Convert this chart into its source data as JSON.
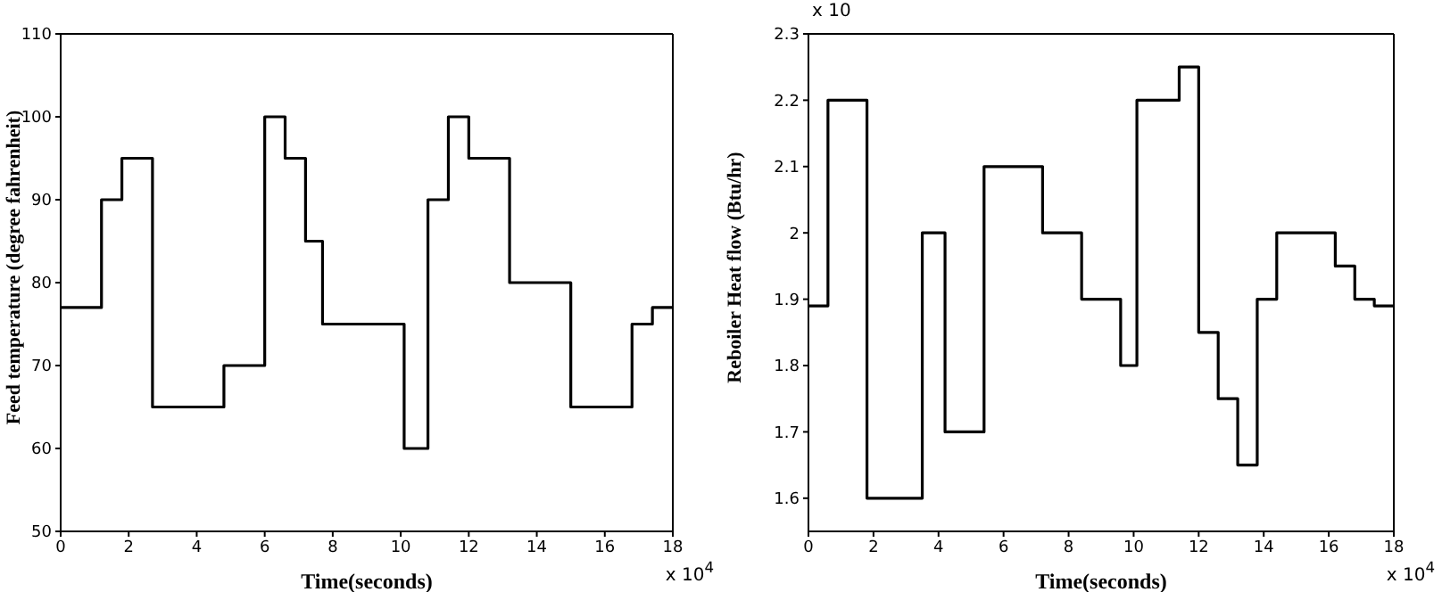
{
  "chart_data": [
    {
      "type": "step",
      "xlabel": "Time(seconds)",
      "ylabel": "Feed temperature (degree fahrenheit)",
      "annotations": [
        "x 10$^{4}$"
      ],
      "x": [
        0,
        1.2,
        1.8,
        2.7,
        4.8,
        6.0,
        6.6,
        7.2,
        7.7,
        10.1,
        10.8,
        11.4,
        12.0,
        13.2,
        15.0,
        16.8,
        17.4,
        18
      ],
      "values": [
        77,
        90,
        95,
        65,
        70,
        100,
        95,
        85,
        75,
        60,
        90,
        100,
        95,
        80,
        65,
        75,
        77,
        77
      ],
      "color": "#000000",
      "xlim": [
        0,
        18
      ],
      "xticks": [
        0,
        2,
        4,
        6,
        8,
        10,
        12,
        14,
        16,
        18
      ],
      "ylim": [
        50,
        110
      ],
      "yticks": [
        50,
        60,
        70,
        80,
        90,
        100,
        110
      ],
      "grid": false
    },
    {
      "type": "step",
      "xlabel": "Time(seconds)",
      "ylabel": "Reboiler Heat flow (Btu/hr)",
      "annotations": [
        "x 10$^{4}$",
        "x 10"
      ],
      "x": [
        0,
        0.6,
        1.8,
        3.5,
        4.2,
        5.4,
        7.2,
        8.4,
        9.6,
        10.1,
        11.4,
        12.0,
        12.6,
        13.2,
        13.8,
        14.4,
        16.2,
        16.8,
        17.4,
        18
      ],
      "values": [
        1.89,
        2.2,
        1.6,
        2.0,
        1.7,
        2.1,
        2.0,
        1.9,
        1.8,
        2.2,
        2.25,
        1.85,
        1.75,
        1.65,
        1.9,
        2.0,
        1.95,
        1.9,
        1.89,
        1.89
      ],
      "color": "#000000",
      "xlim": [
        0,
        18
      ],
      "xticks": [
        0,
        2,
        4,
        6,
        8,
        10,
        12,
        14,
        16,
        18
      ],
      "ylim": [
        1.55,
        2.3
      ],
      "yticks": [
        1.6,
        1.7,
        1.8,
        1.9,
        2,
        2.1,
        2.2,
        2.3
      ],
      "grid": false
    }
  ]
}
